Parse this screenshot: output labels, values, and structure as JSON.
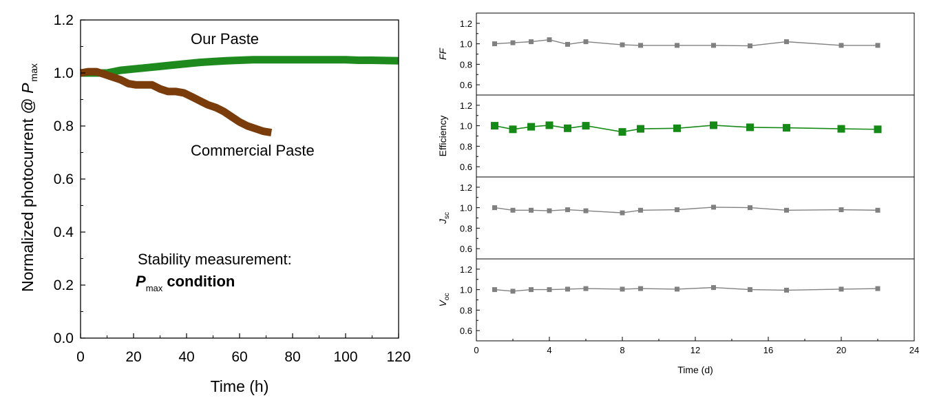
{
  "chart_data": [
    {
      "type": "line",
      "xlabel": "Time (h)",
      "ylabel_main": "Normalized photocurrent @ ",
      "ylabel_var": "P",
      "ylabel_sub": "max",
      "xlim": [
        0,
        120
      ],
      "ylim": [
        0.0,
        1.2
      ],
      "xticks": [
        0,
        20,
        40,
        60,
        80,
        100,
        120
      ],
      "yticks": [
        0.0,
        0.2,
        0.4,
        0.6,
        0.8,
        1.0,
        1.2
      ],
      "xtick_labels": [
        "0",
        "20",
        "40",
        "60",
        "80",
        "100",
        "120"
      ],
      "ytick_labels": [
        "0.0",
        "0.2",
        "0.4",
        "0.6",
        "0.8",
        "1.0",
        "1.2"
      ],
      "series": [
        {
          "name": "Our Paste",
          "color": "#1e8a1e",
          "x": [
            0,
            5,
            10,
            15,
            20,
            25,
            30,
            35,
            40,
            45,
            50,
            55,
            60,
            65,
            70,
            75,
            80,
            85,
            90,
            95,
            100,
            105,
            110,
            115,
            120
          ],
          "y": [
            1.0,
            1.0,
            1.0,
            1.01,
            1.015,
            1.02,
            1.025,
            1.03,
            1.035,
            1.04,
            1.043,
            1.046,
            1.048,
            1.05,
            1.05,
            1.05,
            1.05,
            1.05,
            1.05,
            1.05,
            1.05,
            1.048,
            1.048,
            1.047,
            1.046
          ]
        },
        {
          "name": "Commercial Paste",
          "color": "#7a3c0a",
          "x": [
            0,
            3,
            6,
            9,
            12,
            15,
            18,
            21,
            24,
            27,
            30,
            33,
            36,
            39,
            42,
            45,
            48,
            51,
            54,
            57,
            60,
            63,
            66,
            69,
            72
          ],
          "y": [
            1.0,
            1.005,
            1.005,
            0.995,
            0.985,
            0.975,
            0.96,
            0.955,
            0.955,
            0.955,
            0.94,
            0.93,
            0.93,
            0.925,
            0.91,
            0.895,
            0.88,
            0.87,
            0.855,
            0.835,
            0.815,
            0.8,
            0.79,
            0.78,
            0.775
          ]
        }
      ],
      "annotations": {
        "our_paste": "Our Paste",
        "commercial_paste": "Commercial Paste",
        "stability_line1": "Stability measurement:",
        "stability_var": "P",
        "stability_sub": "max",
        "stability_rest": " condition"
      }
    },
    {
      "type": "line",
      "xlabel": "Time (d)",
      "xlim": [
        0,
        24
      ],
      "xticks": [
        0,
        4,
        8,
        12,
        16,
        20,
        24
      ],
      "xtick_labels": [
        "0",
        "4",
        "8",
        "12",
        "16",
        "20",
        "24"
      ],
      "panel_ylim": [
        0.5,
        1.3
      ],
      "panel_yticks": [
        0.6,
        0.8,
        1.0,
        1.2
      ],
      "panel_ytick_labels": [
        "0.6",
        "0.8",
        "1.0",
        "1.2"
      ],
      "panels": [
        {
          "ylabel_main": "FF",
          "ylabel_italic": true,
          "ylabel_sub": "",
          "color": "#808080",
          "marker": "small",
          "x": [
            1,
            2,
            3,
            4,
            5,
            6,
            8,
            9,
            11,
            13,
            15,
            17,
            20,
            22
          ],
          "y": [
            1.0,
            1.01,
            1.02,
            1.04,
            0.995,
            1.02,
            0.99,
            0.985,
            0.985,
            0.985,
            0.98,
            1.02,
            0.985,
            0.985
          ]
        },
        {
          "ylabel_main": "Efficiency",
          "ylabel_italic": false,
          "ylabel_sub": "",
          "color": "#168a16",
          "marker": "large",
          "x": [
            1,
            2,
            3,
            4,
            5,
            6,
            8,
            9,
            11,
            13,
            15,
            17,
            20,
            22
          ],
          "y": [
            1.0,
            0.965,
            0.99,
            1.005,
            0.975,
            1.0,
            0.94,
            0.97,
            0.975,
            1.005,
            0.985,
            0.98,
            0.97,
            0.965
          ]
        },
        {
          "ylabel_main": "J",
          "ylabel_italic": true,
          "ylabel_sub": "sc",
          "color": "#808080",
          "marker": "small",
          "x": [
            1,
            2,
            3,
            4,
            5,
            6,
            8,
            9,
            11,
            13,
            15,
            17,
            20,
            22
          ],
          "y": [
            1.0,
            0.975,
            0.975,
            0.97,
            0.98,
            0.97,
            0.95,
            0.975,
            0.98,
            1.005,
            1.0,
            0.975,
            0.98,
            0.975
          ]
        },
        {
          "ylabel_main": "V",
          "ylabel_italic": true,
          "ylabel_sub": "oc",
          "color": "#808080",
          "marker": "small",
          "x": [
            1,
            2,
            3,
            4,
            5,
            6,
            8,
            9,
            11,
            13,
            15,
            17,
            20,
            22
          ],
          "y": [
            1.0,
            0.985,
            1.0,
            1.0,
            1.005,
            1.01,
            1.005,
            1.01,
            1.005,
            1.02,
            1.0,
            0.995,
            1.005,
            1.01
          ]
        }
      ]
    }
  ]
}
